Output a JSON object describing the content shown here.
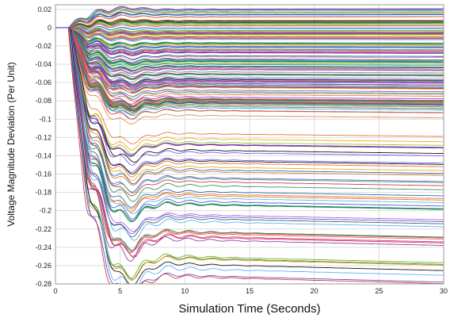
{
  "chart_data": {
    "type": "line",
    "title": "",
    "xlabel": "Simulation Time (Seconds)",
    "ylabel": "Voltage Magnitude Deviation (Per Unit)",
    "xlim": [
      0,
      30
    ],
    "ylim": [
      -0.28,
      0.025
    ],
    "x_ticks": [
      "0",
      "5",
      "10",
      "15",
      "20",
      "25",
      "30"
    ],
    "y_ticks": [
      "0.02",
      "0",
      "-0.02",
      "-0.04",
      "-0.06",
      "-0.08",
      "-0.1",
      "-0.12",
      "-0.14",
      "-0.16",
      "-0.18",
      "-0.2",
      "-0.22",
      "-0.24",
      "-0.26",
      "-0.28"
    ],
    "grid": true,
    "legend": "none",
    "series_description": "Hundreds of bus voltage deviation traces: flat at 0 until a disturbance at about t=1 s, a steep drop to a minimum around t=5-6 s, damped oscillations, then settling at a final deviation between about +0.02 and -0.27 per unit.",
    "representative_series": [
      {
        "x": [
          0,
          1,
          2,
          3,
          4,
          5,
          6,
          7,
          8,
          9,
          10,
          12,
          15,
          20,
          25,
          30
        ],
        "y": [
          0,
          0,
          -0.01,
          0.0,
          0.01,
          0.02,
          0.018,
          0.019,
          0.02,
          0.019,
          0.019,
          0.019,
          0.019,
          0.019,
          0.019,
          0.019
        ]
      },
      {
        "x": [
          0,
          1,
          2,
          3,
          4,
          5,
          6,
          7,
          8,
          9,
          10,
          12,
          15,
          20,
          25,
          30
        ],
        "y": [
          0,
          0,
          -0.04,
          -0.06,
          -0.075,
          -0.085,
          -0.09,
          -0.095,
          -0.1,
          -0.1,
          -0.1,
          -0.1,
          -0.1,
          -0.1,
          -0.1,
          -0.1
        ]
      },
      {
        "x": [
          0,
          1,
          2,
          3,
          4,
          5,
          6,
          7,
          8,
          9,
          10,
          12,
          15,
          20,
          25,
          30
        ],
        "y": [
          0,
          0,
          -0.05,
          -0.11,
          -0.15,
          -0.19,
          -0.2,
          -0.19,
          -0.21,
          -0.2,
          -0.2,
          -0.2,
          -0.2,
          -0.2,
          -0.2,
          -0.2
        ]
      },
      {
        "x": [
          0,
          1,
          2,
          3,
          4,
          5,
          6,
          7,
          8,
          9,
          10,
          12,
          15,
          20,
          25,
          30
        ],
        "y": [
          0,
          0,
          -0.06,
          -0.13,
          -0.19,
          -0.25,
          -0.25,
          -0.24,
          -0.26,
          -0.255,
          -0.26,
          -0.26,
          -0.265,
          -0.265,
          -0.265,
          -0.27
        ]
      }
    ]
  }
}
